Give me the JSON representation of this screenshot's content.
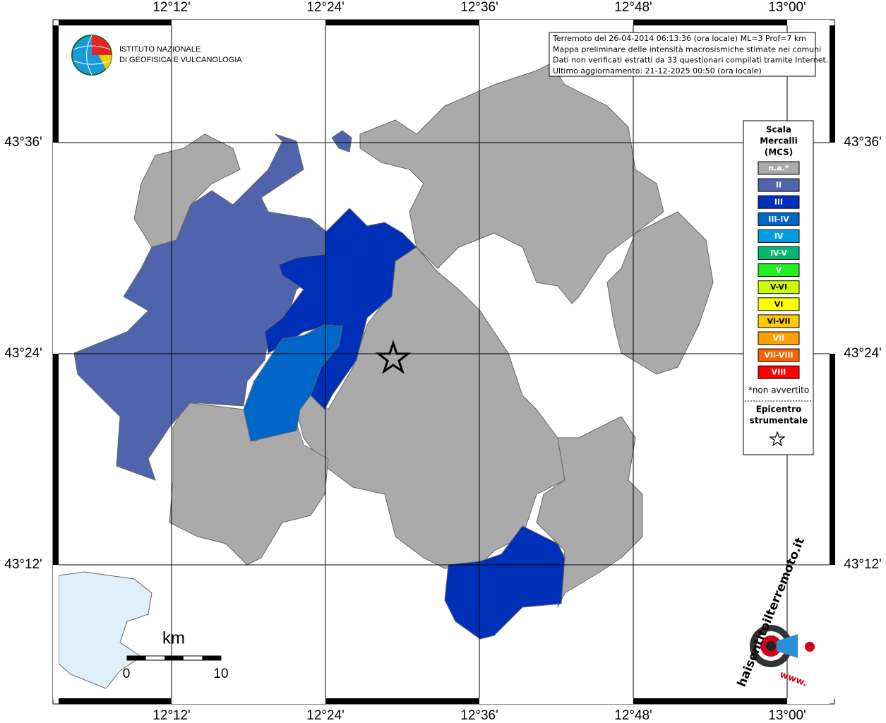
{
  "header": {
    "logo_lines": [
      "ISTITUTO NAZIONALE",
      "DI GEOFISICA E VULCANOLOGIA"
    ]
  },
  "info": {
    "lines": [
      "Terremoto del 26-04-2014 06:13:36 (ora locale) ML=3 Prof=7 km",
      "Mappa preliminare delle intensità macrosismiche stimate nei comuni",
      "Dati non verificati estratti da 33 questionari compilati tramite Internet.",
      "Ultimo aggiornamento: 21-12-2025 00:50 (ora locale)"
    ]
  },
  "axes": {
    "lon": [
      "12°12'",
      "12°24'",
      "12°36'",
      "12°48'",
      "13°00'"
    ],
    "lat": [
      "43°36'",
      "43°24'",
      "43°12'"
    ]
  },
  "legend": {
    "title_lines": [
      "Scala",
      "Mercalli",
      "(MCS)"
    ],
    "classes": [
      {
        "label": "n.a.*",
        "color": "#aaaaaa"
      },
      {
        "label": "II",
        "color": "#5064ae"
      },
      {
        "label": "III",
        "color": "#0030b8"
      },
      {
        "label": "III-IV",
        "color": "#0066c8"
      },
      {
        "label": "IV",
        "color": "#00a0e0"
      },
      {
        "label": "IV-V",
        "color": "#00b870"
      },
      {
        "label": "V",
        "color": "#22ee22"
      },
      {
        "label": "V-VI",
        "color": "#ccff00"
      },
      {
        "label": "VI",
        "color": "#ffff00"
      },
      {
        "label": "VI-VII",
        "color": "#ffcc00"
      },
      {
        "label": "VII",
        "color": "#ffa000"
      },
      {
        "label": "VII-VIII",
        "color": "#ff6000"
      },
      {
        "label": "VIII",
        "color": "#ff0000"
      }
    ],
    "note": "*non avvertito",
    "epicenter_lines": [
      "Epicentro",
      "strumentale"
    ]
  },
  "scale": {
    "unit": "km",
    "labels": [
      "0",
      "10"
    ]
  },
  "footer_logo": {
    "name": "haisentitoilterremoto.it",
    "prefix": "www."
  }
}
